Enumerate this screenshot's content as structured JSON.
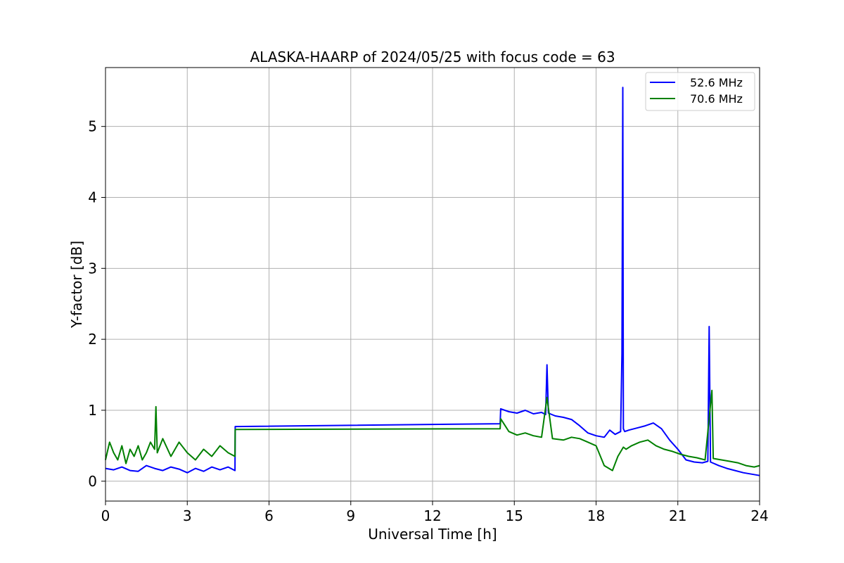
{
  "chart_data": {
    "type": "line",
    "title": "ALASKA-HAARP of 2024/05/25 with focus code = 63",
    "xlabel": "Universal Time [h]",
    "ylabel": "Y-factor [dB]",
    "xlim": [
      0,
      24
    ],
    "ylim": [
      -0.28,
      5.83
    ],
    "xticks": [
      0,
      3,
      6,
      9,
      12,
      15,
      18,
      21,
      24
    ],
    "xtick_labels": [
      "0",
      "3",
      "6",
      "9",
      "12",
      "15",
      "18",
      "21",
      "24"
    ],
    "yticks": [
      0,
      1,
      2,
      3,
      4,
      5
    ],
    "ytick_labels": [
      "0",
      "1",
      "2",
      "3",
      "4",
      "5"
    ],
    "grid": true,
    "legend_position": "top-right",
    "series": [
      {
        "name": "52.6 MHz",
        "color": "#0000ff",
        "x": [
          0,
          0.3,
          0.6,
          0.9,
          1.2,
          1.5,
          1.8,
          2.1,
          2.4,
          2.7,
          3.0,
          3.3,
          3.6,
          3.9,
          4.2,
          4.5,
          4.75,
          4.76,
          14.48,
          14.5,
          14.8,
          15.1,
          15.4,
          15.7,
          16.0,
          16.15,
          16.2,
          16.25,
          16.5,
          16.8,
          17.1,
          17.4,
          17.7,
          18.0,
          18.3,
          18.5,
          18.7,
          18.9,
          18.95,
          18.98,
          19.0,
          19.05,
          19.2,
          19.5,
          19.8,
          20.1,
          20.4,
          20.7,
          21.0,
          21.3,
          21.6,
          21.9,
          22.1,
          22.15,
          22.2,
          22.5,
          22.8,
          23.1,
          23.4,
          23.7,
          24.0
        ],
        "y": [
          0.18,
          0.16,
          0.2,
          0.15,
          0.14,
          0.22,
          0.18,
          0.15,
          0.2,
          0.17,
          0.12,
          0.18,
          0.14,
          0.2,
          0.16,
          0.2,
          0.15,
          0.77,
          0.81,
          1.02,
          0.98,
          0.96,
          1.0,
          0.95,
          0.97,
          0.94,
          1.64,
          0.96,
          0.92,
          0.9,
          0.87,
          0.78,
          0.68,
          0.64,
          0.62,
          0.72,
          0.66,
          0.7,
          1.8,
          5.55,
          0.74,
          0.7,
          0.72,
          0.75,
          0.78,
          0.82,
          0.74,
          0.58,
          0.45,
          0.3,
          0.27,
          0.26,
          0.28,
          2.18,
          0.27,
          0.22,
          0.18,
          0.15,
          0.12,
          0.1,
          0.08
        ]
      },
      {
        "name": "70.6 MHz",
        "color": "#008000",
        "x": [
          0,
          0.15,
          0.3,
          0.45,
          0.6,
          0.75,
          0.9,
          1.05,
          1.2,
          1.35,
          1.5,
          1.65,
          1.8,
          1.85,
          1.9,
          2.1,
          2.4,
          2.7,
          3.0,
          3.3,
          3.6,
          3.9,
          4.2,
          4.5,
          4.75,
          4.76,
          14.48,
          14.5,
          14.8,
          15.1,
          15.4,
          15.7,
          16.0,
          16.2,
          16.4,
          16.8,
          17.1,
          17.4,
          17.7,
          18.0,
          18.3,
          18.6,
          18.8,
          19.0,
          19.1,
          19.3,
          19.6,
          19.9,
          20.2,
          20.5,
          20.8,
          21.1,
          21.4,
          21.7,
          22.0,
          22.25,
          22.3,
          22.6,
          22.9,
          23.2,
          23.5,
          23.8,
          24.0
        ],
        "y": [
          0.3,
          0.55,
          0.4,
          0.3,
          0.5,
          0.25,
          0.45,
          0.35,
          0.5,
          0.3,
          0.4,
          0.55,
          0.45,
          1.05,
          0.4,
          0.6,
          0.35,
          0.55,
          0.4,
          0.3,
          0.45,
          0.35,
          0.5,
          0.4,
          0.35,
          0.73,
          0.74,
          0.88,
          0.7,
          0.65,
          0.68,
          0.64,
          0.62,
          1.18,
          0.6,
          0.58,
          0.62,
          0.6,
          0.55,
          0.5,
          0.22,
          0.15,
          0.35,
          0.48,
          0.45,
          0.5,
          0.55,
          0.58,
          0.5,
          0.45,
          0.42,
          0.38,
          0.35,
          0.33,
          0.3,
          1.28,
          0.32,
          0.3,
          0.28,
          0.26,
          0.22,
          0.2,
          0.22
        ]
      }
    ]
  }
}
